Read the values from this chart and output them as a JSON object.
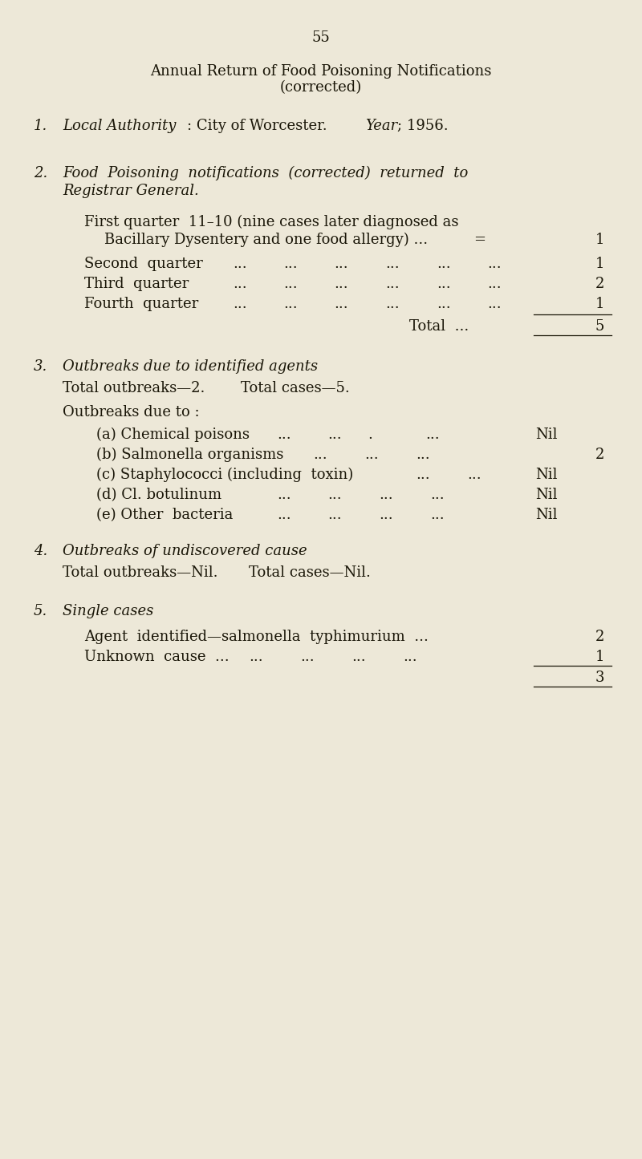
{
  "bg_color": "#ede8d8",
  "text_color": "#1a1608",
  "page_number": "55",
  "title_line1": "Annual Return of Food Poisoning Notifications",
  "title_line2": "(corrected)",
  "figwidth": 8.0,
  "figheight": 14.45,
  "dpi": 100
}
